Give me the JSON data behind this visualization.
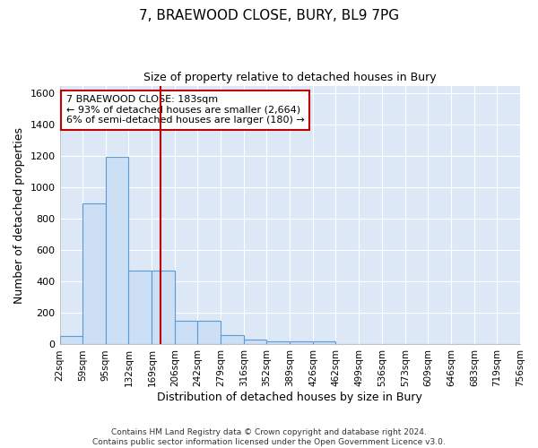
{
  "title": "7, BRAEWOOD CLOSE, BURY, BL9 7PG",
  "subtitle": "Size of property relative to detached houses in Bury",
  "xlabel": "Distribution of detached houses by size in Bury",
  "ylabel": "Number of detached properties",
  "footer_line1": "Contains HM Land Registry data © Crown copyright and database right 2024.",
  "footer_line2": "Contains public sector information licensed under the Open Government Licence v3.0.",
  "bin_edges": [
    22,
    59,
    95,
    132,
    169,
    206,
    242,
    279,
    316,
    352,
    389,
    426,
    462,
    499,
    536,
    573,
    609,
    646,
    683,
    719,
    756
  ],
  "bar_heights": [
    55,
    900,
    1195,
    470,
    470,
    150,
    150,
    60,
    30,
    20,
    20,
    20,
    0,
    0,
    0,
    0,
    0,
    0,
    0,
    0
  ],
  "bar_facecolor": "#ccdff5",
  "bar_edgecolor": "#5b9bd5",
  "property_size": 183,
  "vline_color": "#c00000",
  "annotation_text": "7 BRAEWOOD CLOSE: 183sqm\n← 93% of detached houses are smaller (2,664)\n6% of semi-detached houses are larger (180) →",
  "annotation_box_facecolor": "#ffffff",
  "annotation_box_edgecolor": "#c00000",
  "ylim": [
    0,
    1650
  ],
  "fig_background_color": "#ffffff",
  "axes_background_color": "#dce8f5",
  "grid_color": "#ffffff",
  "title_fontsize": 11,
  "subtitle_fontsize": 9,
  "tick_label_fontsize": 7.5,
  "axis_label_fontsize": 9,
  "footer_fontsize": 6.5
}
